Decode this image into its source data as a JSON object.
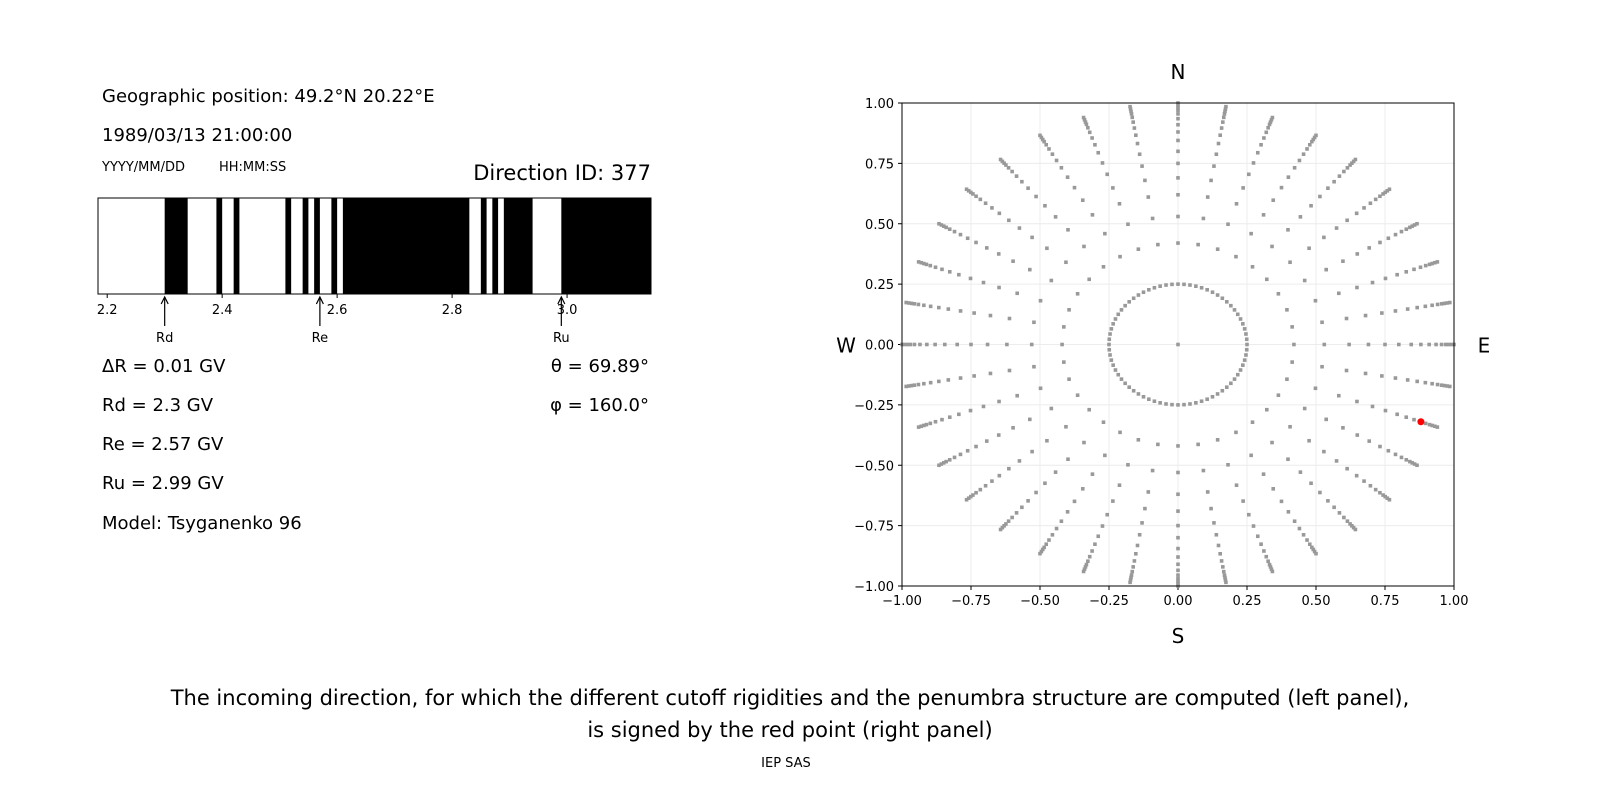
{
  "left_panel": {
    "geo_position": "Geographic position: 49.2°N 20.22°E",
    "datetime": "1989/03/13 21:00:00",
    "date_format": "YYYY/MM/DD",
    "time_format": "HH:MM:SS",
    "direction_id": "Direction ID: 377",
    "delta_r": "ΔR = 0.01 GV",
    "rd": "Rd = 2.3 GV",
    "re": "Re = 2.57 GV",
    "ru": "Ru = 2.99 GV",
    "model": "Model: Tsyganenko 96",
    "theta": "θ = 69.89°",
    "phi": "φ = 160.0°"
  },
  "chart_data": [
    {
      "type": "bar",
      "description_kind": "penumbra",
      "xlim": [
        2.184,
        3.146
      ],
      "xticks": [
        2.2,
        2.4,
        2.6,
        2.8,
        3.0
      ],
      "xtick_labels": [
        "2.2",
        "2.4",
        "2.6",
        "2.8",
        "3.0"
      ],
      "forbidden_intervals": [
        [
          2.3,
          2.34
        ],
        [
          2.39,
          2.4
        ],
        [
          2.42,
          2.43
        ],
        [
          2.51,
          2.52
        ],
        [
          2.54,
          2.55
        ],
        [
          2.56,
          2.57
        ],
        [
          2.59,
          2.6
        ],
        [
          2.61,
          2.83
        ],
        [
          2.85,
          2.86
        ],
        [
          2.87,
          2.88
        ],
        [
          2.89,
          2.94
        ],
        [
          2.99,
          3.146
        ]
      ],
      "colors": {
        "forbidden": "#000000",
        "allowed": "#ffffff"
      },
      "markers": [
        {
          "label": "Rd",
          "value": 2.3
        },
        {
          "label": "Re",
          "value": 2.57
        },
        {
          "label": "Ru",
          "value": 2.99
        }
      ]
    },
    {
      "type": "scatter",
      "xlim": [
        -1,
        1
      ],
      "ylim": [
        -1,
        1
      ],
      "ticks": [
        -1.0,
        -0.75,
        -0.5,
        -0.25,
        0.0,
        0.25,
        0.5,
        0.75,
        1.0
      ],
      "tick_labels": [
        "−1.00",
        "−0.75",
        "−0.50",
        "−0.25",
        "0.00",
        "0.25",
        "0.50",
        "0.75",
        "1.00"
      ],
      "grid": true,
      "compass": {
        "top": "N",
        "bottom": "S",
        "left": "W",
        "right": "E"
      },
      "grid_directions": {
        "center": true,
        "inner_ring_radius": 0.25,
        "inner_ring_azimuth_step_deg": 5,
        "spoke_azimuth_step_deg": 10,
        "spoke_radii": [
          0.42,
          0.53,
          0.62,
          0.69,
          0.75,
          0.8,
          0.845,
          0.88,
          0.91,
          0.935,
          0.955,
          0.97,
          0.98,
          0.99,
          1.0
        ]
      },
      "highlight_point": {
        "x": 0.88,
        "y": -0.32
      },
      "colors": {
        "points": "#999999",
        "highlight": "#ff0000"
      }
    }
  ],
  "caption": {
    "line1": "The incoming direction, for which the different cutoff rigidities and the penumbra structure are computed (left panel),",
    "line2": "is signed by the red point (right panel)",
    "credit": "IEP SAS"
  }
}
